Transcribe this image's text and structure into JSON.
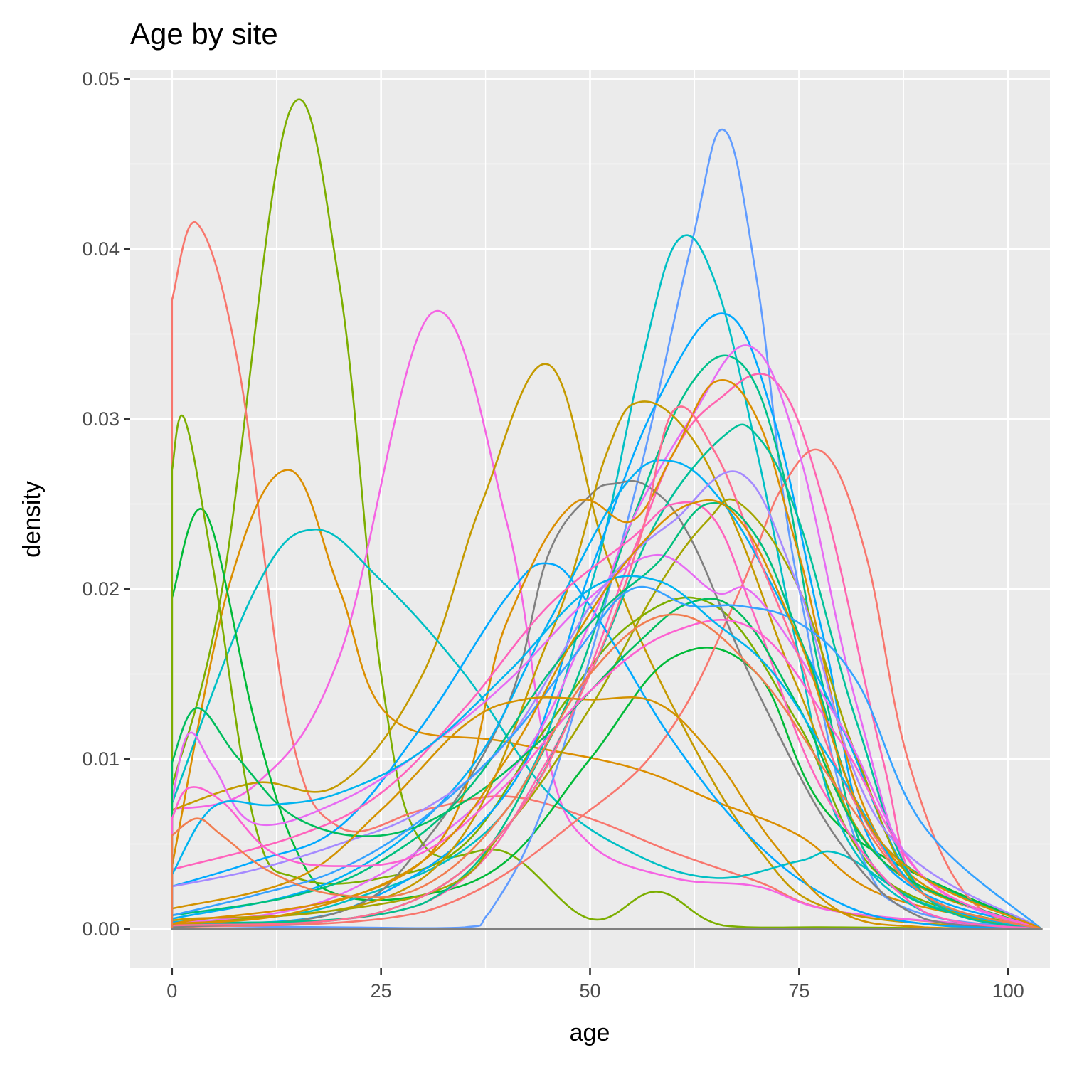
{
  "chart_data": {
    "type": "line",
    "title": "Age by site",
    "xlabel": "age",
    "ylabel": "density",
    "xlim": [
      -5,
      105
    ],
    "ylim": [
      -0.0023,
      0.0505
    ],
    "x_ticks": [
      0,
      25,
      50,
      75,
      100
    ],
    "x_tick_labels": [
      "0",
      "25",
      "50",
      "75",
      "100"
    ],
    "y_ticks": [
      0,
      0.01,
      0.02,
      0.03,
      0.04,
      0.05
    ],
    "y_tick_labels": [
      "0.00",
      "0.01",
      "0.02",
      "0.03",
      "0.04",
      "0.05"
    ],
    "grid": true,
    "legend": "none",
    "background_color": "#ebebeb",
    "series": [
      {
        "color": "#7cae00",
        "x": [
          0,
          6,
          14,
          20,
          25,
          30,
          40,
          50,
          58,
          66,
          80,
          104
        ],
        "y": [
          0.0084,
          0.02,
          0.048,
          0.038,
          0.015,
          0.005,
          0.0045,
          0.0006,
          0.0022,
          0.0002,
          0.0001,
          0
        ]
      },
      {
        "color": "#f8766d",
        "x": [
          0,
          3,
          8,
          14,
          20,
          30,
          40,
          50,
          60,
          70,
          80,
          104
        ],
        "y": [
          0.037,
          0.0415,
          0.033,
          0.012,
          0.006,
          0.007,
          0.0078,
          0.0065,
          0.0045,
          0.0028,
          0.001,
          0
        ]
      },
      {
        "color": "#f564e3",
        "x": [
          0,
          10,
          20,
          31,
          40,
          45,
          50,
          60,
          70,
          80,
          104
        ],
        "y": [
          0.007,
          0.0085,
          0.016,
          0.0362,
          0.024,
          0.01,
          0.005,
          0.003,
          0.0025,
          0.001,
          0
        ]
      },
      {
        "color": "#c49a00",
        "x": [
          0,
          10,
          20,
          30,
          37,
          45,
          52,
          60,
          70,
          80,
          104
        ],
        "y": [
          0.007,
          0.0086,
          0.0085,
          0.015,
          0.025,
          0.0332,
          0.022,
          0.013,
          0.0048,
          0.001,
          0
        ]
      },
      {
        "color": "#db8e00",
        "x": [
          0,
          7,
          14,
          20,
          26,
          40,
          55,
          65,
          75,
          85,
          104
        ],
        "y": [
          0.0037,
          0.0205,
          0.027,
          0.02,
          0.0125,
          0.011,
          0.0095,
          0.0075,
          0.0055,
          0.002,
          0
        ]
      },
      {
        "color": "#00bfc4",
        "x": [
          0,
          10,
          17,
          25,
          35,
          45,
          55,
          65,
          75,
          80,
          90,
          104
        ],
        "y": [
          0.0074,
          0.02,
          0.0235,
          0.0205,
          0.015,
          0.008,
          0.0045,
          0.003,
          0.004,
          0.0044,
          0.0015,
          0
        ]
      },
      {
        "color": "#00ba38",
        "x": [
          0,
          4,
          10,
          15,
          20,
          30,
          40,
          50,
          60,
          70,
          80,
          104
        ],
        "y": [
          0.0195,
          0.0245,
          0.012,
          0.0045,
          0.002,
          0.002,
          0.004,
          0.01,
          0.016,
          0.015,
          0.006,
          0
        ]
      },
      {
        "color": "#7cae00",
        "x": [
          0,
          1.5,
          5,
          10,
          15,
          25,
          35,
          45,
          55,
          65,
          75,
          85,
          104
        ],
        "y": [
          0.027,
          0.03,
          0.021,
          0.006,
          0.003,
          0.003,
          0.005,
          0.012,
          0.018,
          0.019,
          0.012,
          0.003,
          0
        ]
      },
      {
        "color": "#619cff",
        "x": [
          0,
          20,
          35,
          38,
          45,
          55,
          62,
          66,
          70,
          75,
          85,
          104
        ],
        "y": [
          0.0002,
          0.0001,
          0.0001,
          0.001,
          0.008,
          0.025,
          0.04,
          0.047,
          0.038,
          0.02,
          0.002,
          0
        ]
      },
      {
        "color": "#00bfc4",
        "x": [
          0,
          20,
          40,
          50,
          56,
          60.5,
          65,
          70,
          75,
          80,
          90,
          104
        ],
        "y": [
          0.0004,
          0.0015,
          0.007,
          0.02,
          0.033,
          0.0405,
          0.038,
          0.028,
          0.016,
          0.006,
          0.001,
          0
        ]
      },
      {
        "color": "#00a9ff",
        "x": [
          0,
          20,
          40,
          50,
          58,
          66,
          72,
          78,
          85,
          104
        ],
        "y": [
          0.0004,
          0.001,
          0.008,
          0.021,
          0.031,
          0.0362,
          0.03,
          0.017,
          0.004,
          0
        ]
      },
      {
        "color": "#ff64b0",
        "x": [
          0,
          30,
          45,
          55,
          60,
          65,
          72,
          78,
          85,
          90,
          104
        ],
        "y": [
          0.0002,
          0.0015,
          0.01,
          0.022,
          0.028,
          0.031,
          0.0323,
          0.025,
          0.01,
          0.002,
          0
        ]
      },
      {
        "color": "#f8766d",
        "x": [
          0,
          30,
          50,
          60,
          68,
          73,
          78,
          83,
          88,
          95,
          104
        ],
        "y": [
          0.0001,
          0.001,
          0.007,
          0.012,
          0.02,
          0.026,
          0.028,
          0.022,
          0.01,
          0.002,
          0
        ]
      },
      {
        "color": "#808080",
        "x": [
          0,
          20,
          30,
          40,
          45,
          50,
          53,
          57,
          62,
          70,
          80,
          90,
          104
        ],
        "y": [
          0.0001,
          0.001,
          0.005,
          0.013,
          0.022,
          0.0255,
          0.0262,
          0.026,
          0.023,
          0.014,
          0.005,
          0.0006,
          0
        ]
      },
      {
        "color": "#00a9ff",
        "x": [
          0,
          10,
          20,
          30,
          40,
          45,
          50,
          60,
          70,
          80,
          90,
          104
        ],
        "y": [
          0.0025,
          0.004,
          0.006,
          0.012,
          0.0195,
          0.0215,
          0.019,
          0.011,
          0.005,
          0.0015,
          0.0003,
          0
        ]
      },
      {
        "color": "#00c08b",
        "x": [
          0,
          30,
          45,
          55,
          62,
          68,
          73,
          78,
          85,
          104
        ],
        "y": [
          0.0003,
          0.0015,
          0.011,
          0.024,
          0.032,
          0.0333,
          0.027,
          0.014,
          0.003,
          0
        ]
      },
      {
        "color": "#e76bf3",
        "x": [
          0,
          20,
          40,
          50,
          55,
          62,
          69,
          75,
          82,
          90,
          104
        ],
        "y": [
          0.0003,
          0.002,
          0.009,
          0.018,
          0.024,
          0.03,
          0.0343,
          0.028,
          0.013,
          0.002,
          0
        ]
      },
      {
        "color": "#c49a00",
        "x": [
          0,
          30,
          45,
          52,
          56,
          62,
          68,
          75,
          85,
          104
        ],
        "y": [
          0.0005,
          0.003,
          0.017,
          0.028,
          0.031,
          0.029,
          0.023,
          0.014,
          0.004,
          0
        ]
      },
      {
        "color": "#db8e00",
        "x": [
          0,
          30,
          40,
          48,
          55,
          60,
          65,
          70,
          75,
          85,
          104
        ],
        "y": [
          0.0003,
          0.004,
          0.018,
          0.025,
          0.024,
          0.028,
          0.0322,
          0.03,
          0.022,
          0.005,
          0
        ]
      },
      {
        "color": "#00b0f6",
        "x": [
          0,
          20,
          35,
          45,
          54,
          60,
          66,
          72,
          80,
          90,
          104
        ],
        "y": [
          0.0006,
          0.003,
          0.009,
          0.018,
          0.026,
          0.0275,
          0.025,
          0.02,
          0.012,
          0.002,
          0
        ]
      },
      {
        "color": "#a3a500",
        "x": [
          0,
          30,
          40,
          50,
          58,
          64,
          68,
          75,
          82,
          90,
          104
        ],
        "y": [
          0.0002,
          0.002,
          0.006,
          0.013,
          0.02,
          0.024,
          0.025,
          0.02,
          0.01,
          0.002,
          0
        ]
      },
      {
        "color": "#00c19a",
        "x": [
          0,
          25,
          40,
          50,
          58,
          66,
          70,
          75,
          82,
          90,
          104
        ],
        "y": [
          0.0002,
          0.001,
          0.006,
          0.015,
          0.024,
          0.029,
          0.029,
          0.024,
          0.012,
          0.002,
          0
        ]
      },
      {
        "color": "#ff62bc",
        "x": [
          0,
          15,
          25,
          35,
          45,
          55,
          60,
          65,
          70,
          78,
          90,
          104
        ],
        "y": [
          0.0035,
          0.0055,
          0.008,
          0.013,
          0.019,
          0.023,
          0.025,
          0.024,
          0.018,
          0.008,
          0.001,
          0
        ]
      },
      {
        "color": "#e76bf3",
        "x": [
          0,
          2,
          5,
          10,
          20,
          30,
          40,
          50,
          58,
          65,
          70,
          80,
          90,
          104
        ],
        "y": [
          0.0075,
          0.0115,
          0.0095,
          0.0062,
          0.0075,
          0.0105,
          0.0145,
          0.0195,
          0.022,
          0.0198,
          0.0195,
          0.012,
          0.003,
          0
        ]
      },
      {
        "color": "#ff6c91",
        "x": [
          0,
          25,
          40,
          50,
          56,
          60,
          65,
          70,
          75,
          80,
          90,
          104
        ],
        "y": [
          0.0002,
          0.001,
          0.006,
          0.015,
          0.023,
          0.0305,
          0.028,
          0.022,
          0.016,
          0.009,
          0.002,
          0
        ]
      },
      {
        "color": "#a58aff",
        "x": [
          0,
          10,
          20,
          30,
          40,
          50,
          55,
          60,
          68,
          75,
          85,
          104
        ],
        "y": [
          0.0025,
          0.0035,
          0.005,
          0.007,
          0.011,
          0.019,
          0.022,
          0.024,
          0.0268,
          0.02,
          0.006,
          0
        ]
      },
      {
        "color": "#00bd5c",
        "x": [
          0,
          3,
          8,
          15,
          25,
          35,
          45,
          55,
          62,
          68,
          75,
          85,
          104
        ],
        "y": [
          0.0098,
          0.013,
          0.01,
          0.0065,
          0.0055,
          0.0075,
          0.0115,
          0.0165,
          0.0192,
          0.0185,
          0.013,
          0.004,
          0
        ]
      },
      {
        "color": "#00bf7d",
        "x": [
          0,
          15,
          25,
          35,
          45,
          52,
          58,
          64,
          70,
          76,
          85,
          104
        ],
        "y": [
          0.0008,
          0.002,
          0.004,
          0.008,
          0.015,
          0.019,
          0.0215,
          0.025,
          0.023,
          0.016,
          0.005,
          0
        ]
      },
      {
        "color": "#35a2ff",
        "x": [
          0,
          10,
          20,
          30,
          40,
          48,
          55,
          62,
          68,
          75,
          82,
          90,
          104
        ],
        "y": [
          0.0008,
          0.002,
          0.0035,
          0.0065,
          0.011,
          0.016,
          0.02,
          0.019,
          0.019,
          0.018,
          0.0145,
          0.006,
          0
        ]
      },
      {
        "color": "#d39200",
        "x": [
          0,
          15,
          25,
          35,
          42,
          50,
          58,
          65,
          72,
          80,
          90,
          104
        ],
        "y": [
          0.0012,
          0.003,
          0.007,
          0.012,
          0.0135,
          0.0135,
          0.0133,
          0.01,
          0.005,
          0.001,
          0.0001,
          0
        ]
      },
      {
        "color": "#fd61d1",
        "x": [
          0,
          2,
          6,
          12,
          20,
          30,
          40,
          50,
          60,
          70,
          80,
          90,
          104
        ],
        "y": [
          0.0065,
          0.0083,
          0.0075,
          0.0045,
          0.0037,
          0.0045,
          0.0085,
          0.014,
          0.0175,
          0.0175,
          0.011,
          0.003,
          0
        ]
      },
      {
        "color": "#00b4ef",
        "x": [
          0,
          5,
          12,
          20,
          30,
          40,
          50,
          58,
          65,
          72,
          80,
          90,
          104
        ],
        "y": [
          0.0032,
          0.0072,
          0.0073,
          0.008,
          0.0105,
          0.015,
          0.02,
          0.0205,
          0.018,
          0.015,
          0.009,
          0.002,
          0
        ]
      },
      {
        "color": "#d89000",
        "x": [
          0,
          15,
          30,
          40,
          48,
          55,
          62,
          68,
          75,
          85,
          104
        ],
        "y": [
          0.0003,
          0.001,
          0.004,
          0.01,
          0.017,
          0.022,
          0.025,
          0.024,
          0.017,
          0.005,
          0
        ]
      },
      {
        "color": "#f17d50",
        "x": [
          0,
          3,
          6,
          12,
          20,
          30,
          40,
          50,
          60,
          70,
          80,
          90,
          104
        ],
        "y": [
          0.0055,
          0.0065,
          0.0055,
          0.0033,
          0.002,
          0.0025,
          0.007,
          0.015,
          0.0185,
          0.015,
          0.008,
          0.002,
          0
        ]
      },
      {
        "color": "#808080",
        "x": [
          0,
          104
        ],
        "y": [
          0,
          0
        ]
      }
    ]
  }
}
